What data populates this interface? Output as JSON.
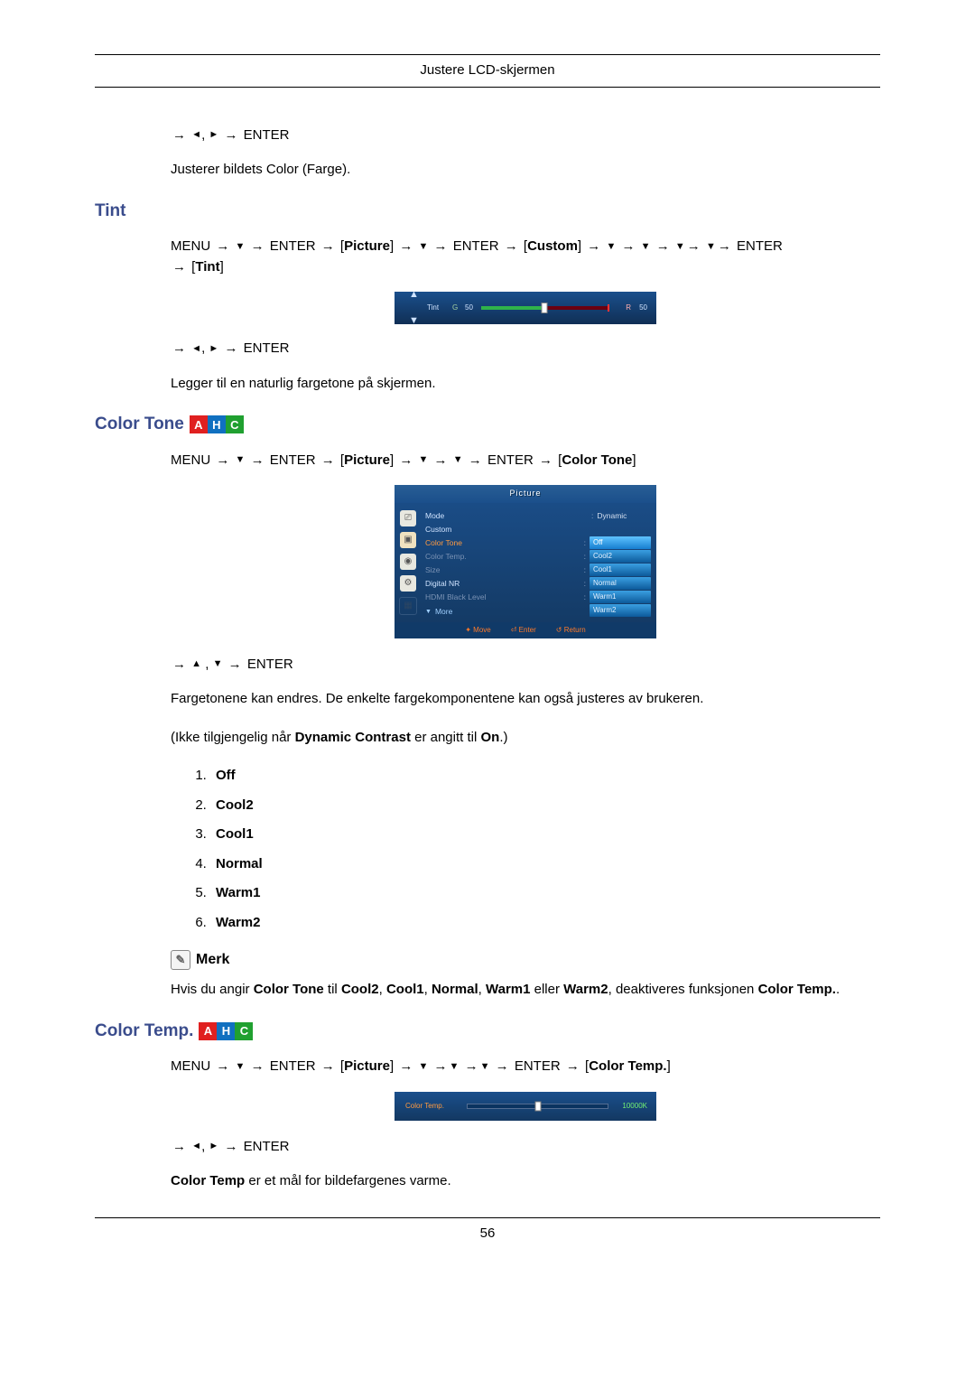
{
  "page": {
    "header": "Justere LCD-skjermen",
    "number": "56"
  },
  "nav": {
    "menu": "MENU",
    "enter": "ENTER",
    "bracket_picture": "Picture",
    "bracket_custom": "Custom",
    "bracket_tint": "Tint",
    "bracket_colortone": "Color Tone",
    "bracket_colortemp": "Color Temp."
  },
  "section1": {
    "nav_post": "→ ◄, ► → ENTER",
    "text": "Justerer bildets Color (Farge)."
  },
  "tint": {
    "heading": "Tint",
    "nav_line": "MENU → ▼ → ENTER → [Picture] → ▼ → ENTER → [Custom] → ▼ → ▼ → ▼→ ▼→ ENTER → [Tint]",
    "nav_post": "→ ◄, ► → ENTER",
    "text": "Legger til en naturlig fargetone på skjermen.",
    "osd": {
      "label": "Tint",
      "g_label": "G",
      "g_val": "50",
      "r_label": "R",
      "r_val": "50"
    }
  },
  "colortone": {
    "heading": "Color Tone",
    "nav_line": "MENU → ▼ → ENTER → [Picture] → ▼ → ▼ → ENTER → [Color Tone]",
    "nav_post": "→ ▲ , ▼ → ENTER",
    "text1": "Fargetonene kan endres. De enkelte fargekomponentene kan også justeres av brukeren.",
    "text2_pre": "(Ikke tilgjengelig når ",
    "text2_b1": "Dynamic Contrast",
    "text2_mid": " er angitt til ",
    "text2_b2": "On",
    "text2_post": ".)",
    "options": [
      "Off",
      "Cool2",
      "Cool1",
      "Normal",
      "Warm1",
      "Warm2"
    ],
    "note_label": "Merk",
    "note_text_parts": {
      "pre": "Hvis du angir ",
      "b1": "Color Tone",
      "mid1": " til ",
      "b2": "Cool2",
      "c1": ", ",
      "b3": "Cool1",
      "c2": ", ",
      "b4": "Normal",
      "c3": ", ",
      "b5": "Warm1",
      "mid2": " eller ",
      "b6": "Warm2",
      "mid3": ", deaktiveres funksjonen ",
      "b7": "Color Temp.",
      "end": "."
    },
    "osd": {
      "title": "Picture",
      "rows": {
        "mode": {
          "label": "Mode",
          "value": "Dynamic"
        },
        "custom": "Custom",
        "colortone": "Color Tone",
        "colortemp": "Color Temp.",
        "size": "Size",
        "digitalnr": "Digital NR",
        "hdmiblack": "HDMI Black Level",
        "more": "More"
      },
      "dropdown": [
        "Off",
        "Cool2",
        "Cool1",
        "Normal",
        "Warm1",
        "Warm2"
      ],
      "footer": {
        "move": "Move",
        "enter": "Enter",
        "return": "Return"
      }
    }
  },
  "colortemp": {
    "heading": "Color Temp.",
    "nav_line": "MENU → ▼ → ENTER → [Picture] → ▼ →▼ →▼ → ENTER → [Color Temp.]",
    "nav_post": "→ ◄, ► → ENTER",
    "text_b": "Color Temp",
    "text_rest": " er et mål for bildefargenes varme.",
    "osd": {
      "label": "Color Temp.",
      "value": "10000K"
    }
  }
}
